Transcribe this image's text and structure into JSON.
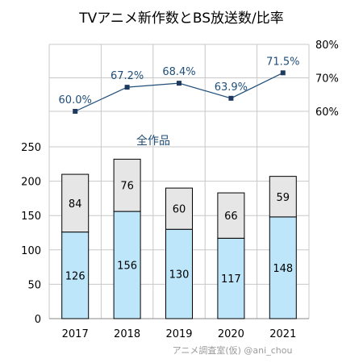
{
  "chart_data": {
    "title": "TVアニメ新作数とBS放送数/比率",
    "categories": [
      "2017",
      "2018",
      "2019",
      "2020",
      "2021"
    ],
    "bar": {
      "type": "stacked-bar",
      "ylim": [
        0,
        250
      ],
      "yticks": [
        "0",
        "50",
        "100",
        "150",
        "200",
        "250"
      ],
      "series": [
        {
          "values": [
            126,
            156,
            130,
            117,
            148
          ],
          "color": "#bde6fb"
        },
        {
          "values": [
            84,
            76,
            60,
            66,
            59
          ],
          "color": "#e6e6e6"
        }
      ],
      "annotation": "全作品"
    },
    "line": {
      "type": "line",
      "values": [
        60.0,
        67.2,
        68.4,
        63.9,
        71.5
      ],
      "labels": [
        "60.0%",
        "67.2%",
        "68.4%",
        "63.9%",
        "71.5%"
      ],
      "ylim": [
        60,
        80
      ],
      "yticks": [
        "60%",
        "70%",
        "80%"
      ],
      "color": "#1f4e79"
    },
    "grid": true
  },
  "credit": "アニメ調査室(仮) @ani_chou"
}
